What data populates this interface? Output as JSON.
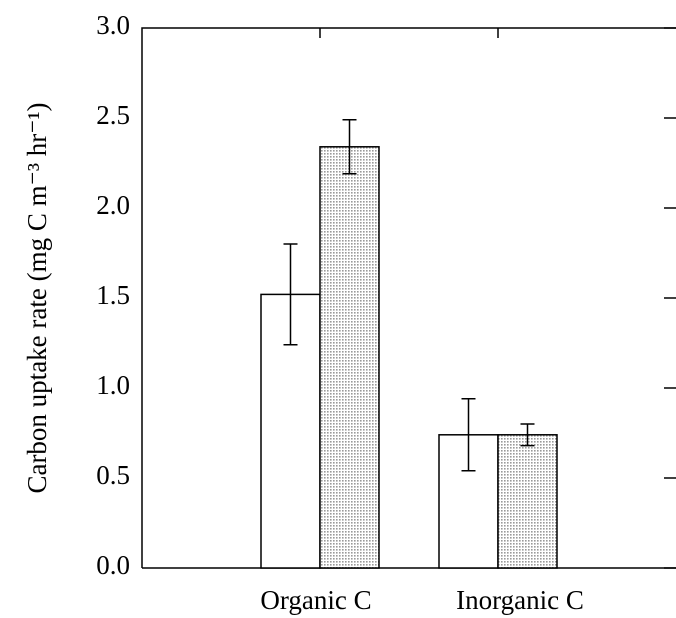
{
  "chart_data": {
    "type": "bar",
    "ylabel": "Carbon uptake rate (mg C m⁻³ hr⁻¹)",
    "categories": [
      "Organic C",
      "Inorganic C"
    ],
    "series": [
      {
        "color": "#ffffff",
        "values": [
          1.52,
          0.74
        ],
        "errors": [
          0.28,
          0.2
        ]
      },
      {
        "color": "#9a9a9a",
        "pattern": "dots",
        "values": [
          2.34,
          0.74
        ],
        "errors": [
          0.15,
          0.06
        ]
      }
    ],
    "ylim": [
      0,
      3
    ],
    "yticks": [
      {
        "value": 0,
        "label": "0.0"
      },
      0.5,
      {
        "value": 1,
        "label": "1.0"
      },
      1.5,
      {
        "value": 2,
        "label": "2.0"
      },
      2.5,
      {
        "value": 3,
        "label": "3.0"
      }
    ]
  }
}
